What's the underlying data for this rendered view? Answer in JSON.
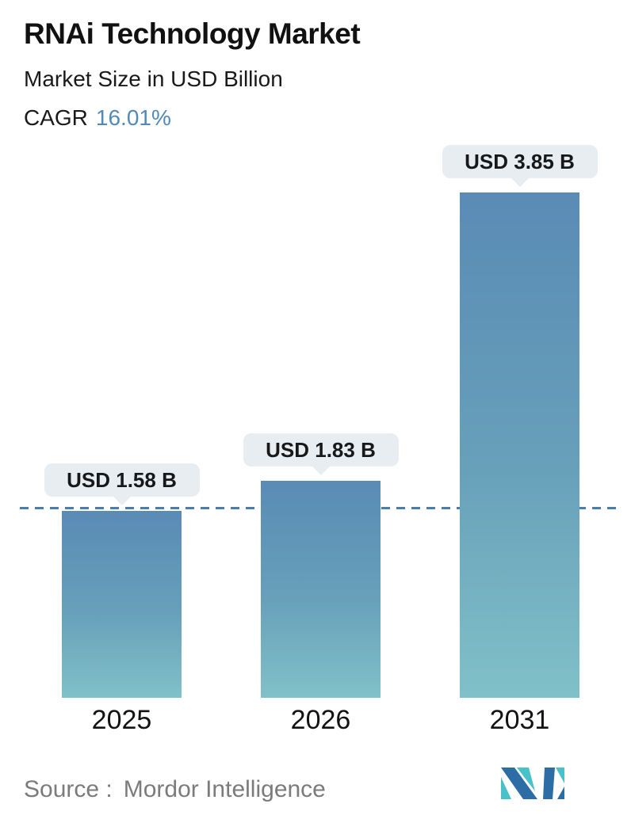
{
  "header": {
    "title": "RNAi Technology Market",
    "subtitle": "Market Size in USD Billion",
    "cagr_label": "CAGR",
    "cagr_value": "16.01%"
  },
  "chart_data": {
    "type": "bar",
    "title": "RNAi Technology Market",
    "subtitle": "Market Size in USD Billion",
    "unit": "USD Billion",
    "cagr_percent": 16.01,
    "categories": [
      "2025",
      "2026",
      "2031"
    ],
    "values": [
      1.58,
      1.83,
      3.85
    ],
    "value_labels": [
      "USD 1.58 B",
      "USD 1.83 B",
      "USD 3.85 B"
    ],
    "reference_line": {
      "style": "dashed",
      "at_value": 1.58
    },
    "grid": false,
    "legend": false,
    "axes": {
      "x_ticks": [
        "2025",
        "2026",
        "2031"
      ],
      "y_axis_visible": false
    }
  },
  "footer": {
    "source_label": "Source :",
    "source_value": "Mordor Intelligence",
    "logo_name": "mordor-intelligence-logo"
  },
  "colors": {
    "accent_blue": "#5289b5",
    "bar_gradient_top": "#5a8bb5",
    "bar_gradient_bottom": "#80c1c8",
    "reference_line": "#4b7da9",
    "callout_bg": "#e7edf0",
    "text_dark": "#1a1a1a",
    "text_gray": "#7b7b7b",
    "logo_teal": "#49c1c9",
    "logo_blue": "#2d6da5"
  }
}
